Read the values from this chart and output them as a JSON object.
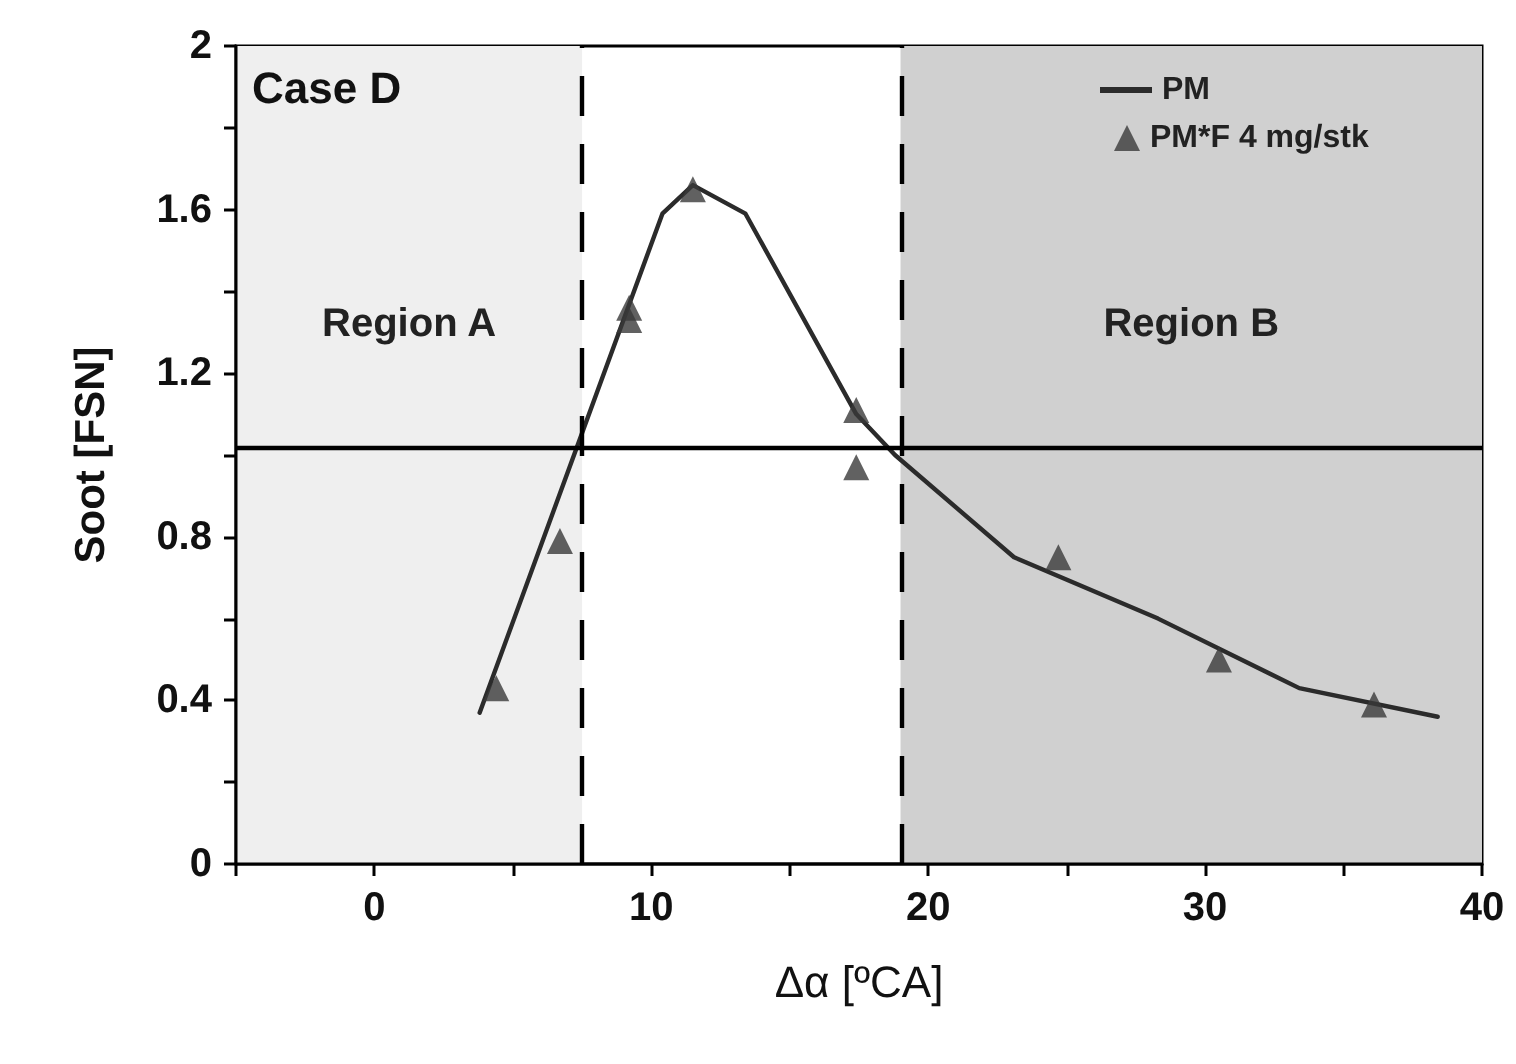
{
  "chart_data": {
    "type": "line",
    "xlabel": "Δα [ºCA]",
    "ylabel": "Soot [FSN]",
    "xlim": [
      -5,
      40
    ],
    "xticks": [
      {
        "value": -5,
        "label": null
      },
      0,
      {
        "value": 5,
        "label": null
      },
      10,
      {
        "value": 15,
        "label": null
      },
      20,
      {
        "value": 25,
        "label": null
      },
      30,
      {
        "value": 35,
        "label": null
      },
      40
    ],
    "ylim": [
      0,
      2
    ],
    "yticks": [
      0,
      {
        "value": 0.2,
        "label": null
      },
      0.4,
      {
        "value": 0.6,
        "label": null
      },
      0.8,
      {
        "value": 1,
        "label": null
      },
      1.2,
      {
        "value": 1.4,
        "label": null
      },
      1.6,
      {
        "value": 1.8,
        "label": null
      },
      2
    ],
    "grid": false,
    "legend": "top right",
    "series": [
      {
        "name": "PM",
        "color": "#2b2b2b",
        "marker": "none",
        "line_style": "solid",
        "x": [
          3.8,
          10.4,
          11.5,
          13.4,
          17.4,
          18.8,
          23.1,
          28.3,
          33.4,
          38.4
        ],
        "values": [
          0.37,
          1.59,
          1.66,
          1.59,
          1.1,
          1.0,
          0.75,
          0.6,
          0.43,
          0.36
        ]
      },
      {
        "name": "PM*F 4 mg/stk",
        "type": "scatter",
        "color": "#3a3a3a",
        "marker": "triangle",
        "x": [
          4.4,
          6.7,
          9.2,
          9.2,
          11.5,
          17.4,
          17.4,
          24.7,
          30.5,
          36.1
        ],
        "values": [
          0.43,
          0.79,
          1.36,
          1.33,
          1.65,
          1.11,
          0.97,
          0.75,
          0.5,
          0.39
        ]
      }
    ],
    "bands": [
      {
        "axis": "x",
        "from": -5,
        "to": 7.5,
        "label": "Region A",
        "color": "#efefef"
      },
      {
        "axis": "x",
        "from": 19,
        "to": 40,
        "label": "Region B",
        "color": "#d0d0d0"
      }
    ],
    "ref_lines": [
      {
        "axis": "x",
        "value": 7.5,
        "color": "#000000",
        "line_style": "dashed"
      },
      {
        "axis": "x",
        "value": 19,
        "color": "#000000",
        "line_style": "dashed"
      },
      {
        "axis": "y",
        "value": 1.02,
        "color": "#000000",
        "line_style": "solid"
      }
    ],
    "annotations": [
      "Case D"
    ]
  }
}
